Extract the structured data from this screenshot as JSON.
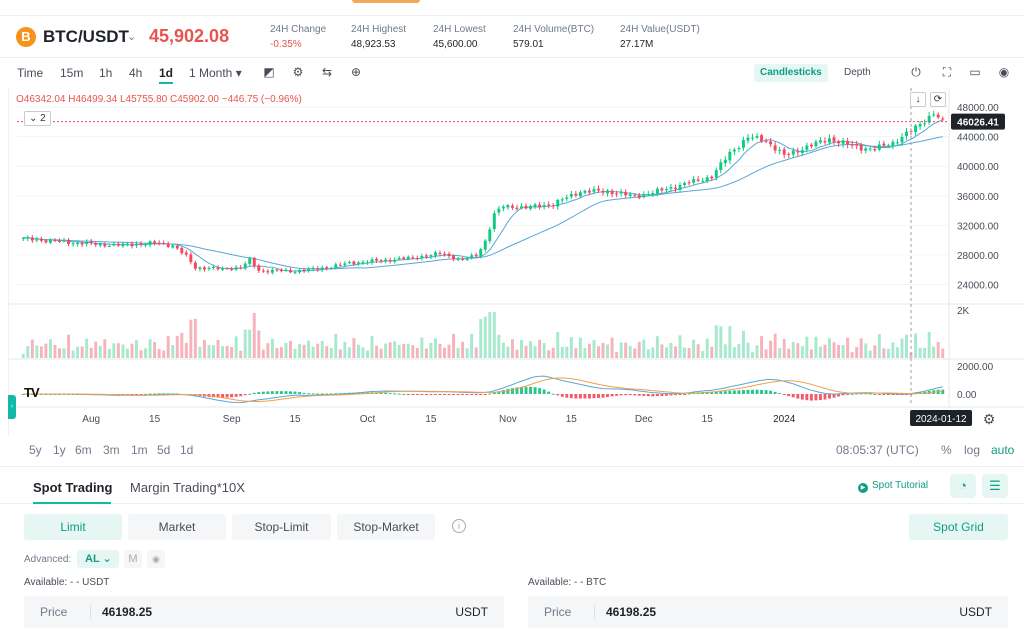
{
  "header": {
    "coin_symbol": "B",
    "pair": "BTC/USDT",
    "pair_caret": "⌄",
    "price": "45,902.08",
    "stats": [
      {
        "label": "24H Change",
        "value": "-0.35%",
        "negative": true
      },
      {
        "label": "24H Highest",
        "value": "48,923.53"
      },
      {
        "label": "24H Lowest",
        "value": "45,600.00"
      },
      {
        "label": "24H Volume(BTC)",
        "value": "579.01"
      },
      {
        "label": "24H Value(USDT)",
        "value": "27.17M"
      }
    ]
  },
  "toolbar": {
    "intervals": [
      "Time",
      "15m",
      "1h",
      "4h",
      "1d",
      "1 Month ▾"
    ],
    "active_interval": "1d",
    "tool_icons": [
      "candle-type-icon",
      "indicator-settings-icon",
      "compare-icon",
      "add-indicator-icon"
    ],
    "modes": [
      "Candlesticks",
      "Depth"
    ],
    "active_mode": "Candlesticks",
    "right_icons": [
      "power-icon",
      "fullscreen-icon",
      "layout-icon",
      "camera-icon"
    ]
  },
  "chart": {
    "ohlc_text": "O46342.04 H46499.34 L45755.80 C45902.00 −446.75 (−0.96%)",
    "count_badge": "⌄ 2",
    "mini_buttons": [
      "↓",
      "⟳"
    ],
    "logo_text": "TV",
    "current_price_label": "46026.41",
    "crosshair_date": "2024-01-12",
    "volume_scale_label": "2K",
    "macd_labels": [
      "2000.00",
      "0.00"
    ],
    "settings_icon": "gear-icon"
  },
  "chart_data": {
    "type": "candlestick",
    "x_labels": [
      "Aug",
      "15",
      "Sep",
      "15",
      "Oct",
      "15",
      "Nov",
      "15",
      "Dec",
      "15",
      "2024"
    ],
    "y_ticks": [
      48000,
      44000,
      40000,
      36000,
      32000,
      28000,
      24000
    ],
    "ylim": [
      21500,
      49500
    ],
    "colors": {
      "up": "#0ecb81",
      "down": "#f6465d",
      "ma_fast": "#5aa7d6",
      "ma_slow": "#f0a04b"
    },
    "anchors": [
      {
        "d": 0,
        "v": 30200
      },
      {
        "d": 10,
        "v": 29700
      },
      {
        "d": 20,
        "v": 29300
      },
      {
        "d": 29,
        "v": 29600
      },
      {
        "d": 33,
        "v": 29300
      },
      {
        "d": 36,
        "v": 27800
      },
      {
        "d": 38,
        "v": 26300
      },
      {
        "d": 44,
        "v": 26100
      },
      {
        "d": 48,
        "v": 26300
      },
      {
        "d": 50,
        "v": 27300
      },
      {
        "d": 52,
        "v": 25900
      },
      {
        "d": 60,
        "v": 25800
      },
      {
        "d": 67,
        "v": 26300
      },
      {
        "d": 72,
        "v": 26900
      },
      {
        "d": 80,
        "v": 27300
      },
      {
        "d": 86,
        "v": 27600
      },
      {
        "d": 92,
        "v": 28200
      },
      {
        "d": 97,
        "v": 27300
      },
      {
        "d": 100,
        "v": 27900
      },
      {
        "d": 102,
        "v": 29900
      },
      {
        "d": 104,
        "v": 33500
      },
      {
        "d": 106,
        "v": 34600
      },
      {
        "d": 111,
        "v": 34400
      },
      {
        "d": 117,
        "v": 34900
      },
      {
        "d": 123,
        "v": 36600
      },
      {
        "d": 129,
        "v": 36600
      },
      {
        "d": 135,
        "v": 35900
      },
      {
        "d": 140,
        "v": 36600
      },
      {
        "d": 146,
        "v": 37600
      },
      {
        "d": 152,
        "v": 38600
      },
      {
        "d": 156,
        "v": 41800
      },
      {
        "d": 160,
        "v": 43900
      },
      {
        "d": 164,
        "v": 43500
      },
      {
        "d": 168,
        "v": 41400
      },
      {
        "d": 172,
        "v": 42400
      },
      {
        "d": 178,
        "v": 43700
      },
      {
        "d": 184,
        "v": 42600
      },
      {
        "d": 188,
        "v": 42300
      },
      {
        "d": 192,
        "v": 43200
      },
      {
        "d": 197,
        "v": 45200
      },
      {
        "d": 201,
        "v": 47200
      },
      {
        "d": 203,
        "v": 46000
      }
    ],
    "ma_fast_period": 7,
    "ma_slow_period": 25,
    "current_price": 46026.41
  },
  "range_row": {
    "ranges": [
      "5y",
      "1y",
      "6m",
      "3m",
      "1m",
      "5d",
      "1d"
    ],
    "time_readout": "08:05:37 (UTC)",
    "options": [
      "%",
      "log",
      "auto"
    ],
    "active_option": "auto"
  },
  "trade": {
    "tabs": [
      "Spot Trading",
      "Margin Trading*10X"
    ],
    "active_tab": "Spot Trading",
    "tutorial": "Spot Tutorial",
    "tutorial_icon": "play-icon",
    "order_types": [
      "Limit",
      "Market",
      "Stop-Limit",
      "Stop-Market"
    ],
    "active_order_type": "Limit",
    "spot_grid": "Spot Grid",
    "advanced_label": "Advanced:",
    "advanced_options": [
      "AL ⌄",
      "M",
      "◉"
    ],
    "available_left": "Available: - - USDT",
    "available_right": "Available: - - BTC",
    "price_label": "Price",
    "buy_price": "46198.25",
    "buy_unit": "USDT",
    "sell_price": "46198.25",
    "sell_unit": "USDT"
  }
}
